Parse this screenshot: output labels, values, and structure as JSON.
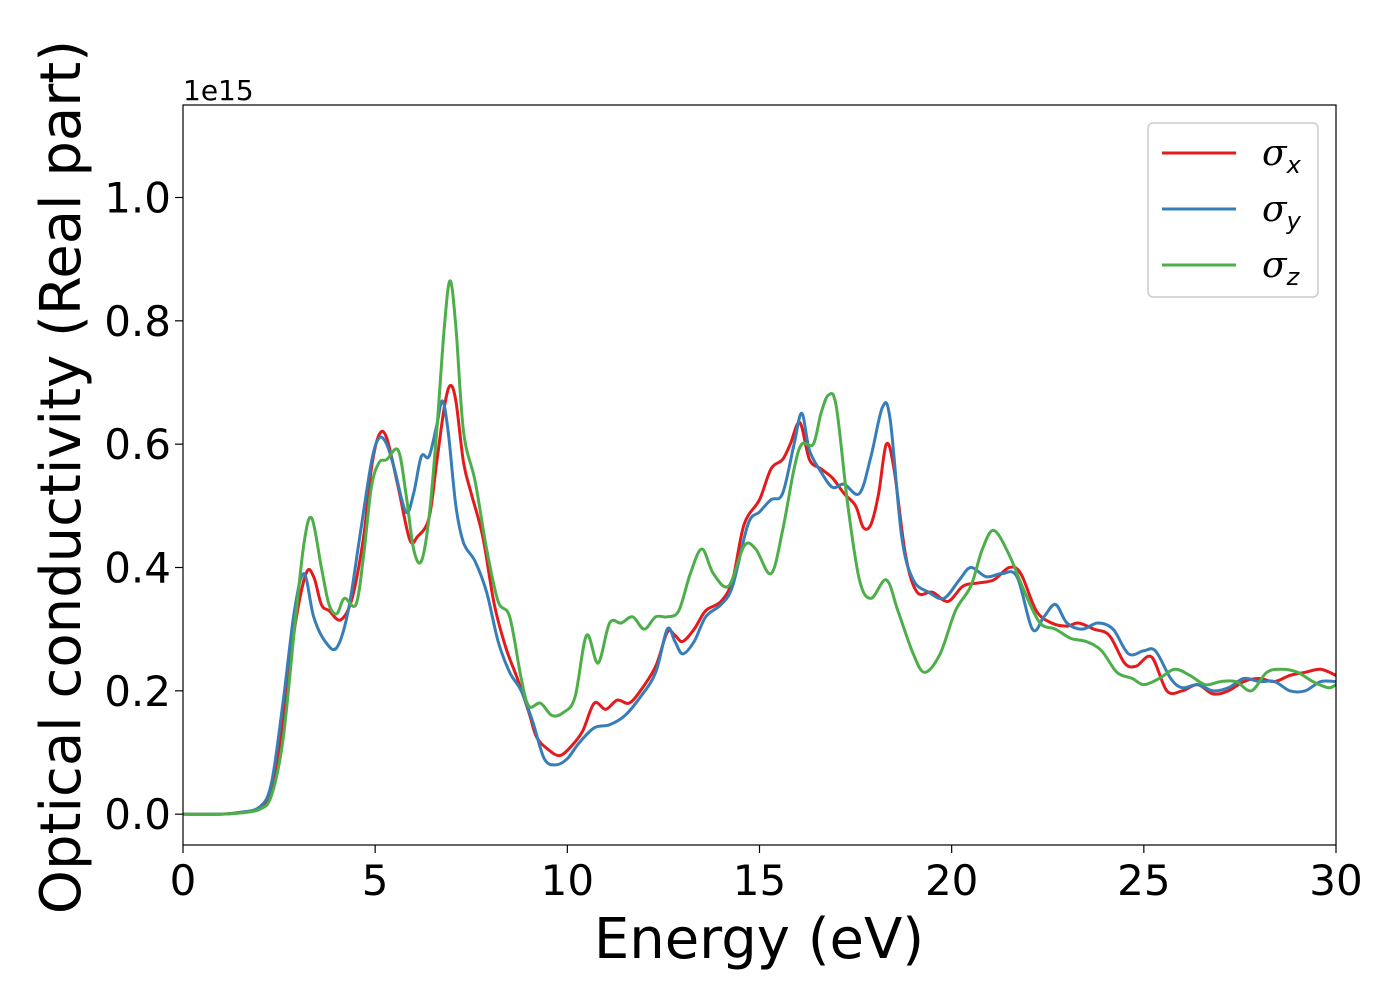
{
  "chart_data": {
    "type": "line",
    "title": "",
    "xlabel": "Energy (eV)",
    "ylabel": "Optical conductivity (Real part)",
    "y_offset_label": "1e15",
    "xlim": [
      0,
      30
    ],
    "ylim": [
      -0.05,
      1.15
    ],
    "x_ticks": [
      0,
      5,
      10,
      15,
      20,
      25,
      30
    ],
    "x_tick_labels": [
      "0",
      "5",
      "10",
      "15",
      "20",
      "25",
      "30"
    ],
    "y_ticks": [
      0.0,
      0.2,
      0.4,
      0.6,
      0.8,
      1.0
    ],
    "y_tick_labels": [
      "0.0",
      "0.2",
      "0.4",
      "0.6",
      "0.8",
      "1.0"
    ],
    "grid": false,
    "legend_position": "top-right",
    "series": [
      {
        "name": "σ",
        "subscript": "x",
        "color": "#e41a1c",
        "points": [
          [
            0,
            0
          ],
          [
            1,
            0
          ],
          [
            1.5,
            0.003
          ],
          [
            2,
            0.01
          ],
          [
            2.3,
            0.04
          ],
          [
            2.6,
            0.15
          ],
          [
            2.9,
            0.3
          ],
          [
            3.2,
            0.39
          ],
          [
            3.4,
            0.385
          ],
          [
            3.6,
            0.34
          ],
          [
            3.8,
            0.33
          ],
          [
            4.1,
            0.315
          ],
          [
            4.4,
            0.35
          ],
          [
            4.7,
            0.45
          ],
          [
            4.9,
            0.56
          ],
          [
            5.1,
            0.615
          ],
          [
            5.3,
            0.61
          ],
          [
            5.6,
            0.53
          ],
          [
            5.9,
            0.445
          ],
          [
            6.1,
            0.45
          ],
          [
            6.4,
            0.48
          ],
          [
            6.6,
            0.57
          ],
          [
            6.8,
            0.66
          ],
          [
            6.95,
            0.695
          ],
          [
            7.1,
            0.67
          ],
          [
            7.3,
            0.57
          ],
          [
            7.5,
            0.52
          ],
          [
            7.8,
            0.45
          ],
          [
            8.1,
            0.34
          ],
          [
            8.4,
            0.27
          ],
          [
            8.7,
            0.22
          ],
          [
            9.0,
            0.165
          ],
          [
            9.2,
            0.125
          ],
          [
            9.5,
            0.105
          ],
          [
            9.8,
            0.095
          ],
          [
            10.1,
            0.11
          ],
          [
            10.4,
            0.135
          ],
          [
            10.7,
            0.18
          ],
          [
            11.0,
            0.17
          ],
          [
            11.3,
            0.185
          ],
          [
            11.6,
            0.18
          ],
          [
            11.9,
            0.2
          ],
          [
            12.3,
            0.24
          ],
          [
            12.6,
            0.295
          ],
          [
            12.8,
            0.29
          ],
          [
            13.0,
            0.28
          ],
          [
            13.3,
            0.3
          ],
          [
            13.6,
            0.33
          ],
          [
            14.0,
            0.345
          ],
          [
            14.3,
            0.38
          ],
          [
            14.6,
            0.47
          ],
          [
            15.0,
            0.51
          ],
          [
            15.3,
            0.56
          ],
          [
            15.6,
            0.575
          ],
          [
            15.8,
            0.6
          ],
          [
            16.05,
            0.635
          ],
          [
            16.3,
            0.575
          ],
          [
            16.6,
            0.56
          ],
          [
            16.9,
            0.545
          ],
          [
            17.2,
            0.52
          ],
          [
            17.5,
            0.5
          ],
          [
            17.7,
            0.465
          ],
          [
            17.9,
            0.47
          ],
          [
            18.1,
            0.52
          ],
          [
            18.3,
            0.6
          ],
          [
            18.5,
            0.56
          ],
          [
            18.8,
            0.42
          ],
          [
            19.1,
            0.36
          ],
          [
            19.5,
            0.36
          ],
          [
            19.9,
            0.345
          ],
          [
            20.3,
            0.37
          ],
          [
            20.7,
            0.375
          ],
          [
            21.1,
            0.38
          ],
          [
            21.5,
            0.4
          ],
          [
            21.8,
            0.39
          ],
          [
            22.2,
            0.33
          ],
          [
            22.6,
            0.31
          ],
          [
            23.0,
            0.305
          ],
          [
            23.3,
            0.31
          ],
          [
            23.7,
            0.3
          ],
          [
            24.1,
            0.29
          ],
          [
            24.5,
            0.245
          ],
          [
            24.8,
            0.24
          ],
          [
            25.2,
            0.255
          ],
          [
            25.6,
            0.2
          ],
          [
            26.0,
            0.2
          ],
          [
            26.4,
            0.21
          ],
          [
            26.8,
            0.195
          ],
          [
            27.2,
            0.2
          ],
          [
            27.6,
            0.215
          ],
          [
            28.0,
            0.22
          ],
          [
            28.4,
            0.215
          ],
          [
            28.8,
            0.225
          ],
          [
            29.2,
            0.23
          ],
          [
            29.6,
            0.235
          ],
          [
            30,
            0.225
          ]
        ]
      },
      {
        "name": "σ",
        "subscript": "y",
        "color": "#377eb8",
        "points": [
          [
            0,
            0
          ],
          [
            1,
            0
          ],
          [
            1.5,
            0.003
          ],
          [
            2,
            0.012
          ],
          [
            2.3,
            0.05
          ],
          [
            2.6,
            0.18
          ],
          [
            2.9,
            0.33
          ],
          [
            3.15,
            0.39
          ],
          [
            3.4,
            0.32
          ],
          [
            3.7,
            0.28
          ],
          [
            4.0,
            0.27
          ],
          [
            4.3,
            0.33
          ],
          [
            4.6,
            0.45
          ],
          [
            4.9,
            0.57
          ],
          [
            5.1,
            0.61
          ],
          [
            5.3,
            0.6
          ],
          [
            5.5,
            0.56
          ],
          [
            5.8,
            0.49
          ],
          [
            6.0,
            0.52
          ],
          [
            6.2,
            0.58
          ],
          [
            6.4,
            0.58
          ],
          [
            6.6,
            0.63
          ],
          [
            6.75,
            0.67
          ],
          [
            6.9,
            0.62
          ],
          [
            7.1,
            0.5
          ],
          [
            7.3,
            0.44
          ],
          [
            7.6,
            0.41
          ],
          [
            7.9,
            0.36
          ],
          [
            8.2,
            0.28
          ],
          [
            8.5,
            0.23
          ],
          [
            8.8,
            0.2
          ],
          [
            9.1,
            0.15
          ],
          [
            9.4,
            0.09
          ],
          [
            9.7,
            0.08
          ],
          [
            10.0,
            0.09
          ],
          [
            10.3,
            0.115
          ],
          [
            10.7,
            0.14
          ],
          [
            11.1,
            0.145
          ],
          [
            11.5,
            0.16
          ],
          [
            11.9,
            0.19
          ],
          [
            12.3,
            0.23
          ],
          [
            12.6,
            0.3
          ],
          [
            12.8,
            0.28
          ],
          [
            13.0,
            0.26
          ],
          [
            13.3,
            0.28
          ],
          [
            13.6,
            0.32
          ],
          [
            14.0,
            0.34
          ],
          [
            14.3,
            0.37
          ],
          [
            14.7,
            0.47
          ],
          [
            15.0,
            0.49
          ],
          [
            15.3,
            0.51
          ],
          [
            15.6,
            0.52
          ],
          [
            15.9,
            0.6
          ],
          [
            16.1,
            0.65
          ],
          [
            16.3,
            0.59
          ],
          [
            16.6,
            0.555
          ],
          [
            16.9,
            0.53
          ],
          [
            17.2,
            0.535
          ],
          [
            17.6,
            0.52
          ],
          [
            17.9,
            0.58
          ],
          [
            18.2,
            0.66
          ],
          [
            18.4,
            0.64
          ],
          [
            18.7,
            0.45
          ],
          [
            19.0,
            0.38
          ],
          [
            19.4,
            0.36
          ],
          [
            19.8,
            0.35
          ],
          [
            20.2,
            0.38
          ],
          [
            20.5,
            0.4
          ],
          [
            20.9,
            0.385
          ],
          [
            21.3,
            0.39
          ],
          [
            21.7,
            0.385
          ],
          [
            22.1,
            0.3
          ],
          [
            22.4,
            0.32
          ],
          [
            22.7,
            0.34
          ],
          [
            23.0,
            0.31
          ],
          [
            23.4,
            0.3
          ],
          [
            23.8,
            0.31
          ],
          [
            24.2,
            0.3
          ],
          [
            24.6,
            0.26
          ],
          [
            25.0,
            0.265
          ],
          [
            25.3,
            0.265
          ],
          [
            25.7,
            0.22
          ],
          [
            26.0,
            0.205
          ],
          [
            26.4,
            0.21
          ],
          [
            26.8,
            0.2
          ],
          [
            27.2,
            0.205
          ],
          [
            27.6,
            0.22
          ],
          [
            28.0,
            0.215
          ],
          [
            28.4,
            0.215
          ],
          [
            28.8,
            0.2
          ],
          [
            29.2,
            0.2
          ],
          [
            29.6,
            0.215
          ],
          [
            30,
            0.215
          ]
        ]
      },
      {
        "name": "σ",
        "subscript": "z",
        "color": "#4daf4a",
        "points": [
          [
            0,
            0
          ],
          [
            1,
            0
          ],
          [
            1.5,
            0.002
          ],
          [
            2,
            0.008
          ],
          [
            2.3,
            0.03
          ],
          [
            2.6,
            0.12
          ],
          [
            2.9,
            0.3
          ],
          [
            3.15,
            0.44
          ],
          [
            3.35,
            0.48
          ],
          [
            3.6,
            0.4
          ],
          [
            3.8,
            0.34
          ],
          [
            4.0,
            0.325
          ],
          [
            4.2,
            0.35
          ],
          [
            4.5,
            0.34
          ],
          [
            4.7,
            0.42
          ],
          [
            4.9,
            0.53
          ],
          [
            5.1,
            0.57
          ],
          [
            5.3,
            0.575
          ],
          [
            5.6,
            0.59
          ],
          [
            5.8,
            0.52
          ],
          [
            6.0,
            0.43
          ],
          [
            6.2,
            0.41
          ],
          [
            6.4,
            0.48
          ],
          [
            6.6,
            0.62
          ],
          [
            6.8,
            0.79
          ],
          [
            6.95,
            0.865
          ],
          [
            7.1,
            0.79
          ],
          [
            7.3,
            0.62
          ],
          [
            7.6,
            0.54
          ],
          [
            7.9,
            0.43
          ],
          [
            8.2,
            0.345
          ],
          [
            8.5,
            0.32
          ],
          [
            8.8,
            0.22
          ],
          [
            9.0,
            0.175
          ],
          [
            9.3,
            0.18
          ],
          [
            9.6,
            0.16
          ],
          [
            9.9,
            0.165
          ],
          [
            10.2,
            0.19
          ],
          [
            10.5,
            0.29
          ],
          [
            10.8,
            0.245
          ],
          [
            11.1,
            0.31
          ],
          [
            11.4,
            0.31
          ],
          [
            11.7,
            0.32
          ],
          [
            12.0,
            0.3
          ],
          [
            12.3,
            0.32
          ],
          [
            12.6,
            0.32
          ],
          [
            12.9,
            0.33
          ],
          [
            13.2,
            0.39
          ],
          [
            13.5,
            0.43
          ],
          [
            13.8,
            0.39
          ],
          [
            14.2,
            0.37
          ],
          [
            14.6,
            0.435
          ],
          [
            14.9,
            0.43
          ],
          [
            15.3,
            0.39
          ],
          [
            15.6,
            0.46
          ],
          [
            15.9,
            0.56
          ],
          [
            16.1,
            0.6
          ],
          [
            16.4,
            0.6
          ],
          [
            16.6,
            0.65
          ],
          [
            16.8,
            0.68
          ],
          [
            17.0,
            0.66
          ],
          [
            17.3,
            0.5
          ],
          [
            17.6,
            0.38
          ],
          [
            17.9,
            0.35
          ],
          [
            18.3,
            0.38
          ],
          [
            18.6,
            0.33
          ],
          [
            19.0,
            0.26
          ],
          [
            19.3,
            0.23
          ],
          [
            19.7,
            0.26
          ],
          [
            20.1,
            0.33
          ],
          [
            20.5,
            0.37
          ],
          [
            20.8,
            0.43
          ],
          [
            21.1,
            0.46
          ],
          [
            21.5,
            0.42
          ],
          [
            21.9,
            0.36
          ],
          [
            22.3,
            0.31
          ],
          [
            22.7,
            0.3
          ],
          [
            23.1,
            0.285
          ],
          [
            23.5,
            0.28
          ],
          [
            23.9,
            0.265
          ],
          [
            24.3,
            0.23
          ],
          [
            24.7,
            0.22
          ],
          [
            25.0,
            0.21
          ],
          [
            25.4,
            0.22
          ],
          [
            25.8,
            0.235
          ],
          [
            26.2,
            0.225
          ],
          [
            26.6,
            0.21
          ],
          [
            27.0,
            0.215
          ],
          [
            27.4,
            0.215
          ],
          [
            27.8,
            0.2
          ],
          [
            28.2,
            0.23
          ],
          [
            28.6,
            0.235
          ],
          [
            29.0,
            0.23
          ],
          [
            29.4,
            0.215
          ],
          [
            29.8,
            0.205
          ],
          [
            30,
            0.21
          ]
        ]
      }
    ]
  }
}
